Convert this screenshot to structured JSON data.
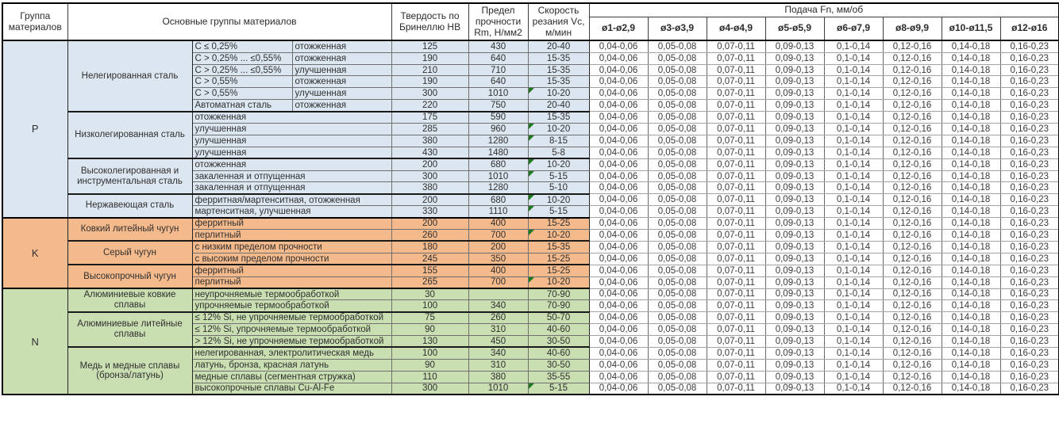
{
  "header": {
    "col_group": "Группа материалов",
    "col_main": "Основные группы материалов",
    "col_hb": "Твердость по Бринеллю НВ",
    "col_rm": "Предел прочности Rm, Н/мм2",
    "col_vc": "Скорость резания Vc, м/мин",
    "col_feed": "Подача Fn, мм/об",
    "feed_cols": [
      "ø1-ø2,9",
      "ø3-ø3,9",
      "ø4-ø4,9",
      "ø5-ø5,9",
      "ø6-ø7,9",
      "ø8-ø9,9",
      "ø10-ø11,5",
      "ø12-ø16"
    ]
  },
  "feed_values": [
    "0,04-0,06",
    "0,05-0,08",
    "0,07-0,11",
    "0,09-0,13",
    "0,1-0,14",
    "0,12-0,16",
    "0,14-0,18",
    "0,16-0,23"
  ],
  "colors": {
    "section_p": "#DCE6F1",
    "section_k": "#F5BA8C",
    "section_n": "#C9DEB1",
    "flag_triangle": "#1F7A1F"
  },
  "sections": [
    {
      "group": "P",
      "subgroups": [
        {
          "label": "Нелегированная сталь",
          "rows": [
            {
              "criteria": "C ≤ 0,25%",
              "condition": "отожженная",
              "hb": "125",
              "rm": "430",
              "vc": "20-40",
              "flag": false
            },
            {
              "criteria": "C > 0,25% ... ≤0,55%",
              "condition": "отожженная",
              "hb": "190",
              "rm": "640",
              "vc": "15-35",
              "flag": false
            },
            {
              "criteria": "C > 0,25% ... ≤0,55%",
              "condition": "улучшенная",
              "hb": "210",
              "rm": "710",
              "vc": "15-35",
              "flag": false
            },
            {
              "criteria": "C > 0,55%",
              "condition": "отожженная",
              "hb": "190",
              "rm": "640",
              "vc": "15-35",
              "flag": false
            },
            {
              "criteria": "C > 0,55%",
              "condition": "улучшенная",
              "hb": "300",
              "rm": "1010",
              "vc": "10-20",
              "flag": true
            },
            {
              "criteria": "Автоматная сталь",
              "condition": "отожженная",
              "hb": "220",
              "rm": "750",
              "vc": "20-40",
              "flag": false
            }
          ]
        },
        {
          "label": "Низколегированная сталь",
          "rows": [
            {
              "desc": "отожженная",
              "hb": "175",
              "rm": "590",
              "vc": "15-35",
              "flag": false
            },
            {
              "desc": "улучшенная",
              "hb": "285",
              "rm": "960",
              "vc": "10-20",
              "flag": true
            },
            {
              "desc": "улучшенная",
              "hb": "380",
              "rm": "1280",
              "vc": "8-15",
              "flag": true
            },
            {
              "desc": "улучшенная",
              "hb": "430",
              "rm": "1480",
              "vc": "5-8",
              "flag": false
            }
          ]
        },
        {
          "label": "Высоколегированная и инструментальная сталь",
          "rows": [
            {
              "desc": "отожженная",
              "hb": "200",
              "rm": "680",
              "vc": "10-20",
              "flag": true
            },
            {
              "desc": "закаленная и отпущенная",
              "hb": "300",
              "rm": "1010",
              "vc": "5-15",
              "flag": true
            },
            {
              "desc": "закаленная и отпущенная",
              "hb": "380",
              "rm": "1280",
              "vc": "5-10",
              "flag": false
            }
          ]
        },
        {
          "label": "Нержавеющая сталь",
          "rows": [
            {
              "desc": "ферритная/мартенситная, отожженная",
              "hb": "200",
              "rm": "680",
              "vc": "10-20",
              "flag": true
            },
            {
              "desc": "мартенситная, улучшенная",
              "hb": "330",
              "rm": "1110",
              "vc": "5-15",
              "flag": true
            }
          ]
        }
      ]
    },
    {
      "group": "K",
      "subgroups": [
        {
          "label": "Ковкий литейный чугун",
          "rows": [
            {
              "desc": "ферритный",
              "hb": "200",
              "rm": "400",
              "vc": "15-25",
              "flag": false
            },
            {
              "desc": "перлитный",
              "hb": "260",
              "rm": "700",
              "vc": "10-20",
              "flag": true
            }
          ]
        },
        {
          "label": "Серый чугун",
          "rows": [
            {
              "desc": "с низким пределом прочности",
              "hb": "180",
              "rm": "200",
              "vc": "15-35",
              "flag": false
            },
            {
              "desc": "с высоким пределом прочности",
              "hb": "245",
              "rm": "350",
              "vc": "15-25",
              "flag": false
            }
          ]
        },
        {
          "label": "Высокопрочный чугун",
          "rows": [
            {
              "desc": "ферритный",
              "hb": "155",
              "rm": "400",
              "vc": "15-25",
              "flag": false
            },
            {
              "desc": "перлитный",
              "hb": "265",
              "rm": "700",
              "vc": "10-20",
              "flag": true
            }
          ]
        }
      ]
    },
    {
      "group": "N",
      "subgroups": [
        {
          "label": "Алюминиевые ковкие сплавы",
          "rows": [
            {
              "desc": "неупрочняемые термообработкой",
              "hb": "30",
              "rm": "",
              "vc": "70-90",
              "flag": false
            },
            {
              "desc": "упрочняемые термообработкой",
              "hb": "100",
              "rm": "340",
              "vc": "70-90",
              "flag": false
            }
          ]
        },
        {
          "label": "Алюминиевые литейные сплавы",
          "rows": [
            {
              "desc": "≤ 12% Si, не упрочняемые термообработкой",
              "hb": "75",
              "rm": "260",
              "vc": "50-70",
              "flag": false
            },
            {
              "desc": "≤ 12% Si, упрочняемые термообработкой",
              "hb": "90",
              "rm": "310",
              "vc": "40-60",
              "flag": false
            },
            {
              "desc": "> 12% Si, не упрочняемые термообработкой",
              "hb": "130",
              "rm": "450",
              "vc": "30-50",
              "flag": false
            }
          ]
        },
        {
          "label": "Медь и медные сплавы (бронза/латунь)",
          "rows": [
            {
              "desc": "нелегированная, электролитическая медь",
              "hb": "100",
              "rm": "340",
              "vc": "40-60",
              "flag": false
            },
            {
              "desc": "латунь, бронза, красная латунь",
              "hb": "90",
              "rm": "310",
              "vc": "30-50",
              "flag": false
            },
            {
              "desc": "медные сплавы (сегментная стружка)",
              "hb": "110",
              "rm": "380",
              "vc": "35-55",
              "flag": false
            },
            {
              "desc": "высокопрочные сплавы Cu-Al-Fe",
              "hb": "300",
              "rm": "1010",
              "vc": "5-15",
              "flag": true
            }
          ]
        }
      ]
    }
  ]
}
